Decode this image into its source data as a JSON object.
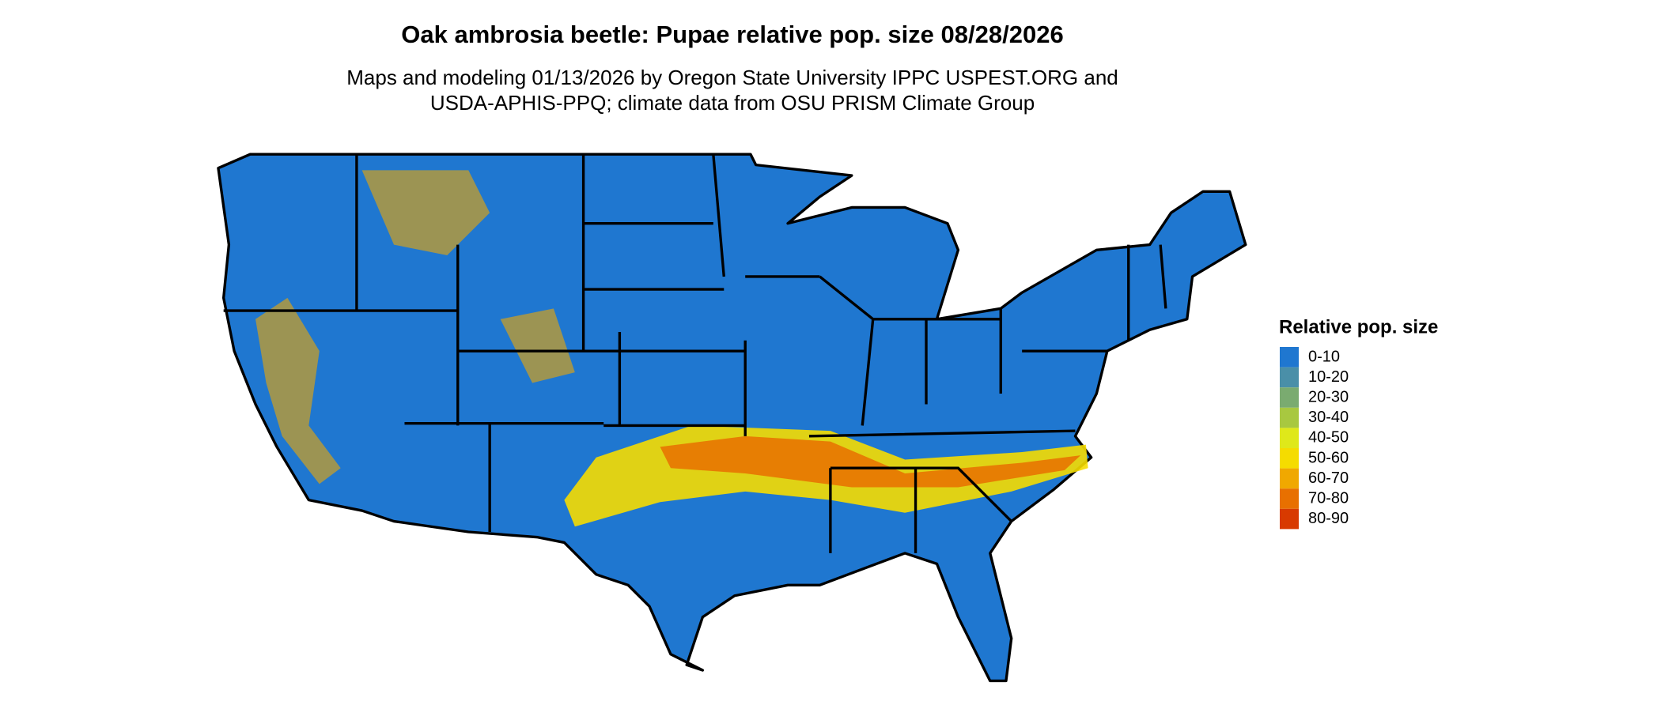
{
  "title": "Oak ambrosia beetle: Pupae relative pop. size 08/28/2026",
  "subtitle": [
    "Maps and modeling 01/13/2026 by Oregon State University IPPC USPEST.ORG and",
    "USDA-APHIS-PPQ; climate data from OSU PRISM Climate Group"
  ],
  "legend": {
    "title": "Relative pop. size",
    "items": [
      {
        "label": "0-10",
        "color": "#1f77d0"
      },
      {
        "label": "10-20",
        "color": "#4a8fa8"
      },
      {
        "label": "20-30",
        "color": "#7aab70"
      },
      {
        "label": "30-40",
        "color": "#a8c840"
      },
      {
        "label": "40-50",
        "color": "#dfe81a"
      },
      {
        "label": "50-60",
        "color": "#f5dc00"
      },
      {
        "label": "60-70",
        "color": "#f0a800"
      },
      {
        "label": "70-80",
        "color": "#e87000"
      },
      {
        "label": "80-90",
        "color": "#d83a00"
      }
    ]
  }
}
